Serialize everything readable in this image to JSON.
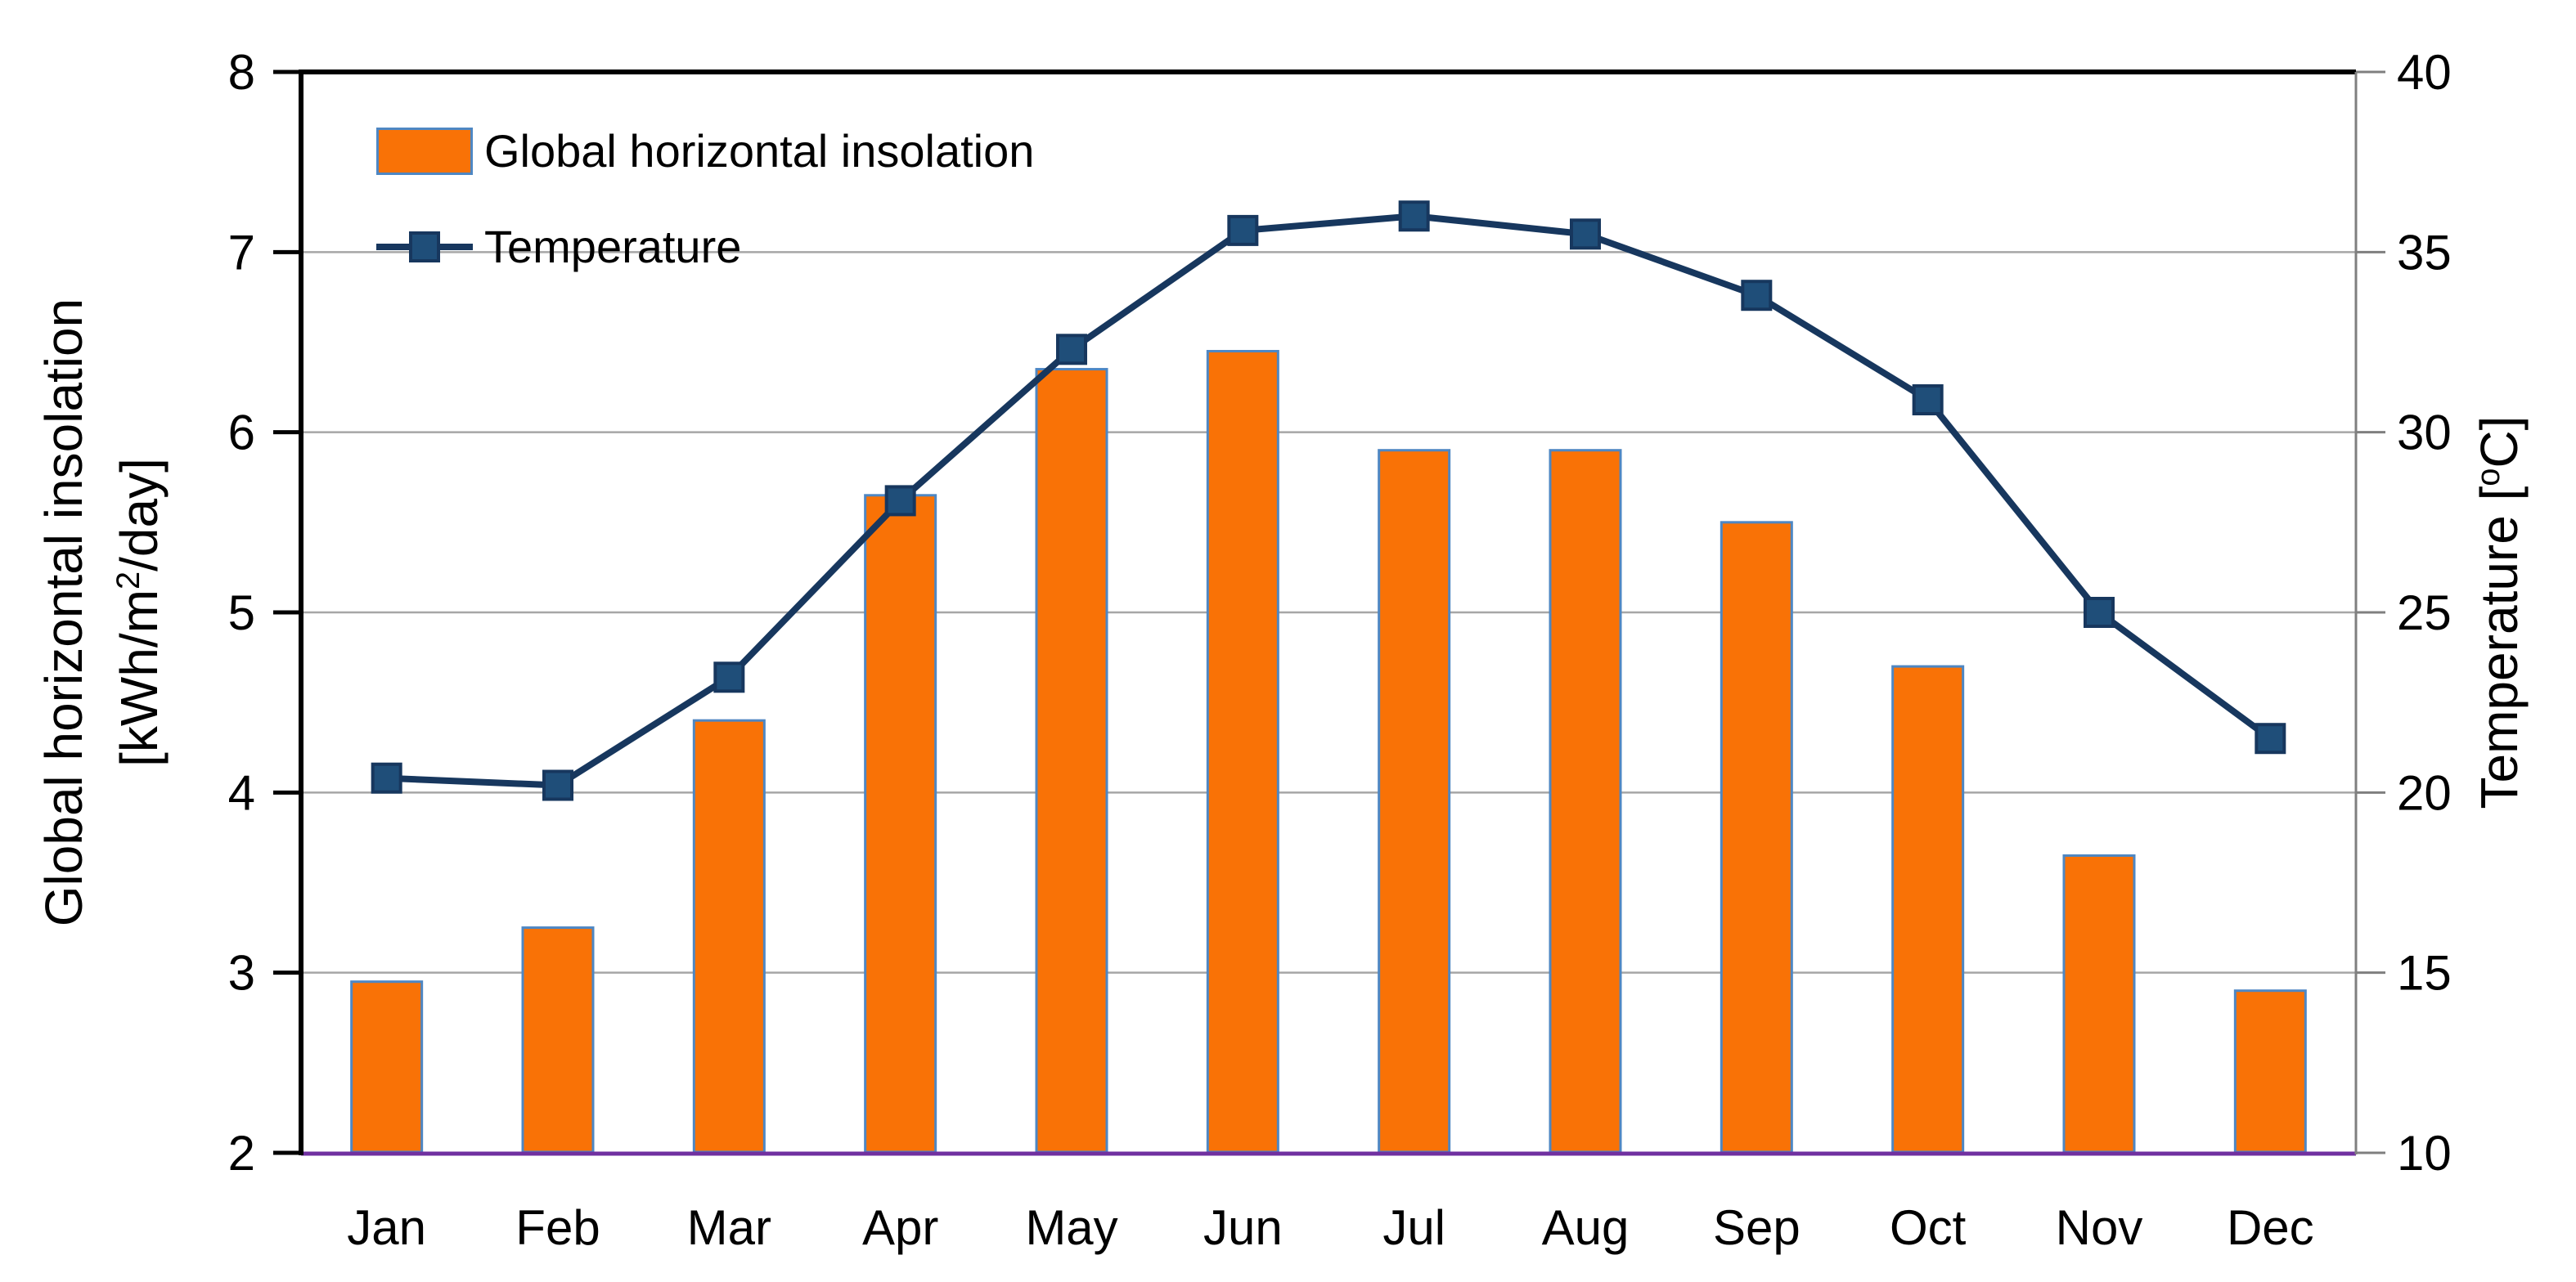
{
  "legend": {
    "items": [
      {
        "label": "Global horizontal insolation",
        "type": "bar"
      },
      {
        "label": "Temperature",
        "type": "line"
      }
    ]
  },
  "left_axis": {
    "title_line1": "Global horizontal insolation",
    "unit_pre": "[kWh/m",
    "unit_sup": "2",
    "unit_post": "/day]",
    "min": 2,
    "max": 8,
    "tick_step": 1,
    "tick_labels": [
      "2",
      "3",
      "4",
      "5",
      "6",
      "7",
      "8"
    ]
  },
  "right_axis": {
    "title_pre": "Temperature [",
    "title_sup": "o",
    "title_post": "C]",
    "min": 10,
    "max": 40,
    "tick_step": 5,
    "tick_labels": [
      "10",
      "15",
      "20",
      "25",
      "30",
      "35",
      "40"
    ]
  },
  "chart_data": {
    "type": "combo_bar_line",
    "categories": [
      "Jan",
      "Feb",
      "Mar",
      "Apr",
      "May",
      "Jun",
      "Jul",
      "Aug",
      "Sep",
      "Oct",
      "Nov",
      "Dec"
    ],
    "series": [
      {
        "name": "Global horizontal insolation",
        "type": "bar",
        "axis": "left",
        "values": [
          2.95,
          3.25,
          4.4,
          5.65,
          6.35,
          6.45,
          5.9,
          5.9,
          5.5,
          4.7,
          3.65,
          2.9
        ]
      },
      {
        "name": "Temperature",
        "type": "line",
        "axis": "right",
        "values": [
          20.4,
          20.2,
          23.2,
          28.1,
          32.3,
          35.6,
          36.0,
          35.5,
          33.8,
          30.9,
          25.0,
          21.5
        ]
      }
    ],
    "xlabel": "",
    "ylabel_left": "Global horizontal insolation [kWh/m2/day]",
    "ylabel_right": "Temperature [oC]",
    "ylim_left": [
      2,
      8
    ],
    "ylim_right": [
      10,
      40
    ],
    "grid": true,
    "legend_position": "top-left-inside"
  },
  "colors": {
    "background": "#FFFFFF",
    "text": "#000000",
    "bar_fill": "#F97206",
    "bar_border": "#4E87C3",
    "line": "#17375E",
    "marker_fill": "#1F4E79",
    "grid": "#A6A6A6",
    "frame": "#000000",
    "right_spine": "#7F7F7F",
    "baseline": "#7030A0"
  }
}
